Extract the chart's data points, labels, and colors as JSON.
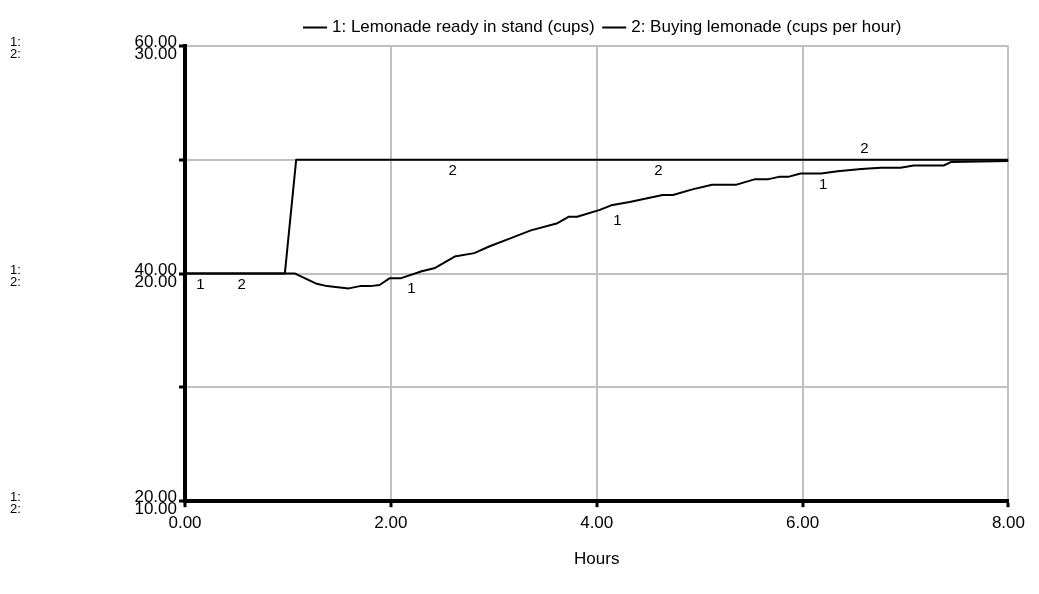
{
  "chart_data": {
    "type": "line",
    "xlabel": "Hours",
    "series": [
      {
        "name": "1: Lemonade ready in stand (cups)",
        "color": "#000000",
        "x": [
          0,
          1.07,
          1.28,
          1.38,
          1.59,
          1.7,
          1.8,
          1.89,
          1.99,
          2.1,
          2.3,
          2.43,
          2.62,
          2.81,
          2.96,
          3.16,
          3.36,
          3.61,
          3.73,
          3.81,
          4.03,
          4.14,
          4.32,
          4.64,
          4.74,
          4.93,
          5.12,
          5.35,
          5.54,
          5.67,
          5.77,
          5.86,
          5.98,
          6.18,
          6.34,
          6.57,
          6.76,
          6.95,
          7.08,
          7.37,
          7.44,
          8
        ],
        "values": [
          40,
          40,
          39.1,
          38.9,
          38.7,
          38.9,
          38.9,
          39.0,
          39.6,
          39.6,
          40.2,
          40.5,
          41.5,
          41.8,
          42.4,
          43.1,
          43.8,
          44.4,
          45.0,
          45.0,
          45.6,
          46.0,
          46.3,
          46.9,
          46.9,
          47.4,
          47.8,
          47.8,
          48.3,
          48.3,
          48.5,
          48.5,
          48.8,
          48.8,
          49.0,
          49.2,
          49.3,
          49.3,
          49.5,
          49.5,
          49.8,
          49.9
        ]
      },
      {
        "name": "2: Buying lemonade (cups per hour)",
        "color": "#000000",
        "axis": "y2",
        "x": [
          0,
          0.97,
          1.08,
          8
        ],
        "values": [
          20,
          20,
          25,
          25
        ]
      }
    ],
    "xlim": [
      0,
      8
    ],
    "xticks": [
      {
        "value": 0,
        "label": "0.00"
      },
      {
        "value": 2,
        "label": "2.00"
      },
      {
        "value": 4,
        "label": "4.00"
      },
      {
        "value": 6,
        "label": "6.00"
      },
      {
        "value": 8,
        "label": "8.00"
      }
    ],
    "ylim": [
      20,
      60
    ],
    "yticks": [
      {
        "value": 20,
        "label": "20.00"
      },
      {
        "value": 30,
        "label": null
      },
      {
        "value": 40,
        "label": "40.00"
      },
      {
        "value": 50,
        "label": null
      },
      {
        "value": 60,
        "label": "60.00"
      }
    ],
    "y2lim": [
      10,
      30
    ],
    "y2ticks": [
      {
        "value": 10,
        "label": "10.00"
      },
      {
        "value": 15,
        "label": null
      },
      {
        "value": 20,
        "label": "20.00"
      },
      {
        "value": 25,
        "label": null
      },
      {
        "value": 30,
        "label": "30.00"
      }
    ],
    "grid": true,
    "legend": "top",
    "marker": "none",
    "line_style": "solid",
    "annotations": [
      "1:",
      "2:",
      "1:",
      "2:",
      "1:",
      "2:",
      {
        "text": "1",
        "x": 0.15,
        "y": 40
      },
      {
        "text": "2",
        "x": 0.55,
        "y": 40
      },
      {
        "text": "1",
        "x": 2.2,
        "y": 39.6
      },
      {
        "text": "2",
        "x": 2.6,
        "y": 50
      },
      {
        "text": "1",
        "x": 4.2,
        "y": 45.6
      },
      {
        "text": "2",
        "x": 4.6,
        "y": 50
      },
      {
        "text": "1",
        "x": 6.2,
        "y": 48.8
      },
      {
        "text": "2",
        "x": 6.6,
        "y": 50
      }
    ]
  }
}
